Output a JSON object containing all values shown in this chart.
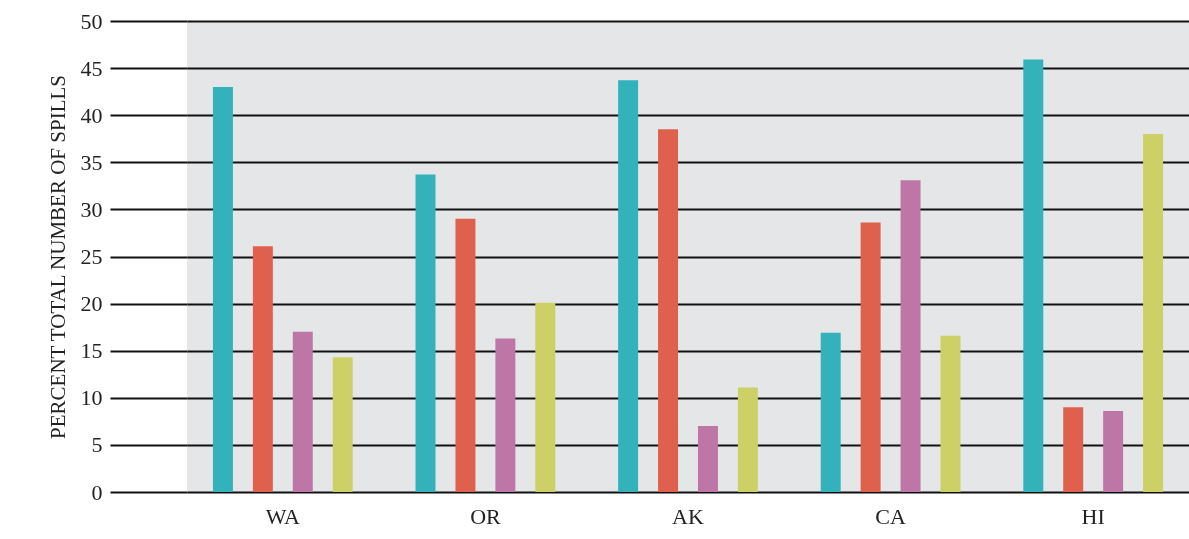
{
  "chart_data": {
    "type": "bar",
    "ylabel": "PERCENT TOTAL NUMBER OF SPILLS",
    "categories": [
      "WA",
      "OR",
      "AK",
      "CA",
      "HI"
    ],
    "series": [
      {
        "color": "#33b2bb",
        "values": [
          43.0,
          33.7,
          43.7,
          16.9,
          45.9
        ]
      },
      {
        "color": "#e0604e",
        "values": [
          26.1,
          29.0,
          38.5,
          28.6,
          9.0
        ]
      },
      {
        "color": "#bd76a6",
        "values": [
          17.0,
          16.3,
          7.0,
          33.1,
          8.6
        ]
      },
      {
        "color": "#cdd066",
        "values": [
          14.3,
          20.1,
          11.1,
          16.6,
          38.0
        ]
      }
    ],
    "ylim": [
      0,
      50
    ],
    "yticks": [
      0,
      5,
      10,
      15,
      20,
      25,
      30,
      35,
      40,
      45,
      50
    ],
    "grid": "y",
    "legend": false
  }
}
